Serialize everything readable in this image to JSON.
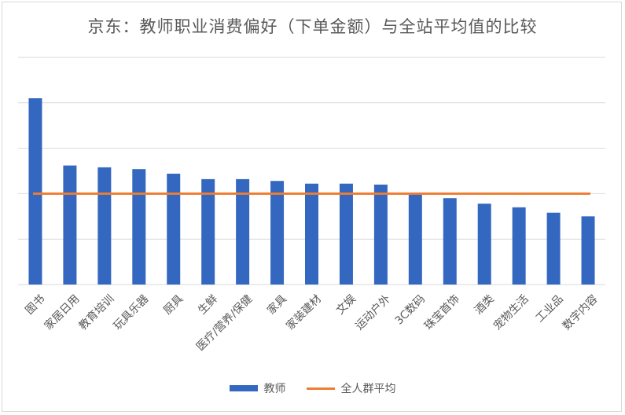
{
  "chart_data": {
    "type": "bar",
    "title": "京东：教师职业消费偏好（下单金额）与全站平均值的比较",
    "categories": [
      "图书",
      "家居日用",
      "教育培训",
      "玩具乐器",
      "厨具",
      "生鲜",
      "医疗/营养/保健",
      "家具",
      "家装建材",
      "文娱",
      "运动户外",
      "3C数码",
      "珠宝首饰",
      "酒类",
      "宠物生活",
      "工业品",
      "数字内容"
    ],
    "series": [
      {
        "name": "教师",
        "type": "bar",
        "color": "#3468c0",
        "values": [
          2.05,
          1.31,
          1.29,
          1.27,
          1.22,
          1.16,
          1.16,
          1.14,
          1.11,
          1.11,
          1.1,
          0.99,
          0.95,
          0.89,
          0.85,
          0.79,
          0.75
        ]
      },
      {
        "name": "全人群平均",
        "type": "line",
        "color": "#ed7d31",
        "values": [
          1,
          1,
          1,
          1,
          1,
          1,
          1,
          1,
          1,
          1,
          1,
          1,
          1,
          1,
          1,
          1,
          1
        ]
      }
    ],
    "ylim": [
      0,
      2.5
    ],
    "grid": true,
    "y_tick_labels_shown": false,
    "legend": "bottom"
  }
}
